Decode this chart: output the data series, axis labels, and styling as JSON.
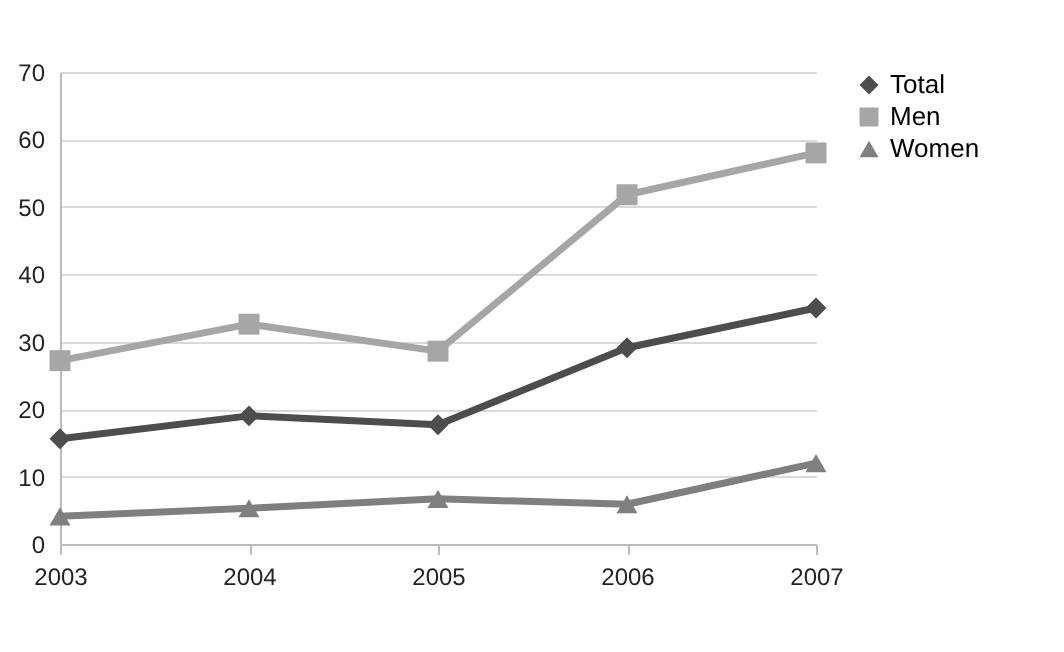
{
  "chart_data": {
    "type": "line",
    "categories": [
      "2003",
      "2004",
      "2005",
      "2006",
      "2007"
    ],
    "ylim": [
      0,
      70
    ],
    "yticks": [
      0,
      10,
      20,
      30,
      40,
      50,
      60,
      70
    ],
    "grid": "y",
    "legend": "right",
    "series": [
      {
        "name": "Total",
        "color": "#4d4d4d",
        "marker": "diamond",
        "values": [
          15.6,
          19.0,
          17.7,
          29.1,
          35.0
        ]
      },
      {
        "name": "Men",
        "color": "#a6a6a6",
        "marker": "square",
        "values": [
          27.2,
          32.6,
          28.6,
          51.8,
          58.0
        ]
      },
      {
        "name": "Women",
        "color": "#7f7f7f",
        "marker": "triangle",
        "values": [
          4.1,
          5.3,
          6.7,
          5.9,
          12.0
        ]
      }
    ]
  }
}
